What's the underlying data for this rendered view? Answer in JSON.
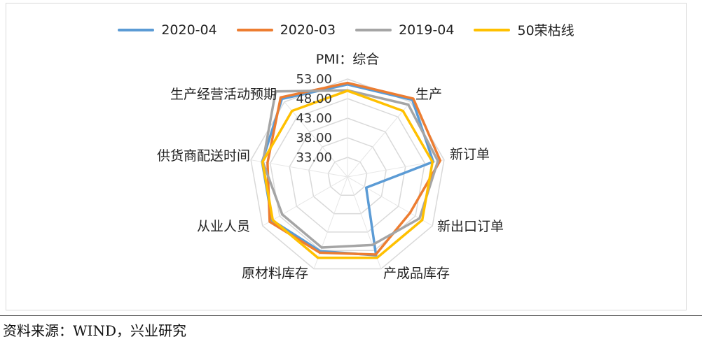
{
  "chart_data": {
    "type": "radar",
    "title": "PMI：综合",
    "categories": [
      "PMI：综合",
      "生产",
      "新订单",
      "新出口订单",
      "产成品库存",
      "原材料库存",
      "从业人员",
      "供货商配送时间",
      "生产经营活动预期"
    ],
    "radial_range": [
      28,
      53
    ],
    "tick_labels": [
      "53.00",
      "48.00",
      "43.00",
      "38.00",
      "33.00"
    ],
    "tick_values": [
      53,
      48,
      43,
      38,
      33
    ],
    "grid": true,
    "legend_position": "top",
    "series": [
      {
        "name": "2020-04",
        "color": "#5B9BD5",
        "values": [
          51.6,
          53.7,
          50.2,
          33.5,
          49.3,
          48.2,
          50.2,
          50.1,
          54.0
        ]
      },
      {
        "name": "2020-03",
        "color": "#ED7D31",
        "values": [
          52.0,
          54.1,
          52.0,
          46.4,
          49.1,
          48.6,
          50.9,
          48.7,
          54.5
        ]
      },
      {
        "name": "2019-04",
        "color": "#A5A5A5",
        "values": [
          50.1,
          52.1,
          51.4,
          49.2,
          46.5,
          47.2,
          47.2,
          49.9,
          56.5
        ]
      },
      {
        "name": "50荣枯线",
        "color": "#FFC000",
        "values": [
          50,
          50,
          50,
          50,
          50,
          50,
          50,
          50,
          50
        ]
      }
    ]
  },
  "source_text": "资料来源：WIND，兴业研究"
}
